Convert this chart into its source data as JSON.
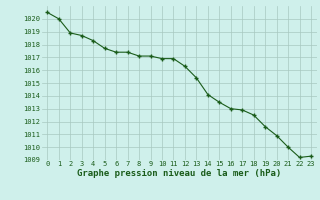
{
  "x": [
    0,
    1,
    2,
    3,
    4,
    5,
    6,
    7,
    8,
    9,
    10,
    11,
    12,
    13,
    14,
    15,
    16,
    17,
    18,
    19,
    20,
    21,
    22,
    23
  ],
  "y": [
    1020.5,
    1020.0,
    1018.9,
    1018.7,
    1018.3,
    1017.7,
    1017.4,
    1017.4,
    1017.1,
    1017.1,
    1016.9,
    1016.9,
    1016.3,
    1015.4,
    1014.1,
    1013.5,
    1013.0,
    1012.9,
    1012.5,
    1011.6,
    1010.9,
    1010.0,
    1009.2,
    1009.3
  ],
  "line_color": "#1a5c1a",
  "marker": "+",
  "bg_color": "#cff0eb",
  "grid_color": "#a8c8c0",
  "xlabel": "Graphe pression niveau de la mer (hPa)",
  "xlabel_color": "#1a5c1a",
  "tick_label_color": "#1a5c1a",
  "ylim": [
    1009,
    1021
  ],
  "xlim": [
    -0.5,
    23.5
  ],
  "yticks": [
    1009,
    1010,
    1011,
    1012,
    1013,
    1014,
    1015,
    1016,
    1017,
    1018,
    1019,
    1020
  ],
  "xticks": [
    0,
    1,
    2,
    3,
    4,
    5,
    6,
    7,
    8,
    9,
    10,
    11,
    12,
    13,
    14,
    15,
    16,
    17,
    18,
    19,
    20,
    21,
    22,
    23
  ],
  "xlabel_fontsize": 6.5,
  "tick_fontsize": 5.0,
  "linewidth": 0.8,
  "markersize": 3.5,
  "markeredgewidth": 1.0
}
